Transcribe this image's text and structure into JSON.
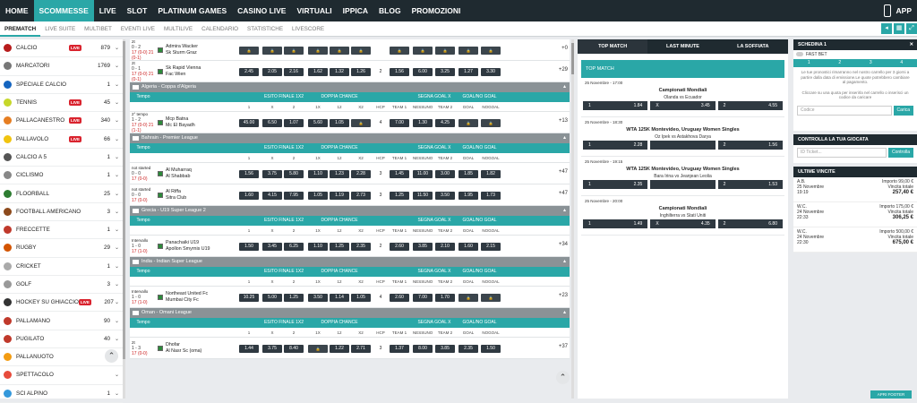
{
  "topnav": {
    "items": [
      "HOME",
      "SCOMMESSE",
      "LIVE",
      "SLOT",
      "PLATINUM GAMES",
      "CASINO LIVE",
      "VIRTUALI",
      "IPPICA",
      "BLOG",
      "PROMOZIONI"
    ],
    "app": "APP"
  },
  "subnav": [
    "PREMATCH",
    "LIVE SUITE",
    "MULTIBET",
    "EVENTI LIVE",
    "MULTILIVE",
    "CALENDARIO",
    "STATISTICHE",
    "LIVESCORE"
  ],
  "sports": [
    {
      "name": "CALCIO",
      "live": "LIVE",
      "count": "879",
      "color": "#b71c1c"
    },
    {
      "name": "MARCATORI",
      "live": "",
      "count": "1769",
      "color": "#777"
    },
    {
      "name": "SPECIALE CALCIO",
      "live": "",
      "count": "1",
      "color": "#1565c0"
    },
    {
      "name": "TENNIS",
      "live": "LIVE",
      "count": "45",
      "color": "#c6d72a"
    },
    {
      "name": "PALLACANESTRO",
      "live": "LIVE",
      "count": "340",
      "color": "#e67e22"
    },
    {
      "name": "PALLAVOLO",
      "live": "LIVE",
      "count": "66",
      "color": "#f1c40f"
    },
    {
      "name": "CALCIO A 5",
      "live": "",
      "count": "1",
      "color": "#555"
    },
    {
      "name": "CICLISMO",
      "live": "",
      "count": "1",
      "color": "#888"
    },
    {
      "name": "FLOORBALL",
      "live": "",
      "count": "25",
      "color": "#2e7d32"
    },
    {
      "name": "FOOTBALL AMERICANO",
      "live": "",
      "count": "3",
      "color": "#8d4a1c"
    },
    {
      "name": "FRECCETTE",
      "live": "",
      "count": "1",
      "color": "#c0392b"
    },
    {
      "name": "RUGBY",
      "live": "",
      "count": "29",
      "color": "#d35400"
    },
    {
      "name": "CRICKET",
      "live": "",
      "count": "1",
      "color": "#aaa"
    },
    {
      "name": "GOLF",
      "live": "",
      "count": "3",
      "color": "#999"
    },
    {
      "name": "HOCKEY SU GHIACCIO",
      "live": "LIVE",
      "count": "207",
      "color": "#333"
    },
    {
      "name": "PALLAMANO",
      "live": "",
      "count": "90",
      "color": "#c0392b"
    },
    {
      "name": "PUGILATO",
      "live": "",
      "count": "40",
      "color": "#c0392b"
    },
    {
      "name": "PALLANUOTO",
      "live": "",
      "count": "4",
      "color": "#f39c12"
    },
    {
      "name": "SPETTACOLO",
      "live": "",
      "count": "",
      "color": "#e74c3c"
    },
    {
      "name": "SCI ALPINO",
      "live": "",
      "count": "1",
      "color": "#3498db"
    }
  ],
  "markets": {
    "h1": "ESITO FINALE 1X2",
    "h2": "DOPPIA CHANCE",
    "h3": "SEGNA GOAL X",
    "h4": "GOAL/NO GOAL",
    "tempo": "Tempo",
    "sub": [
      "1",
      "X",
      "2",
      "1X",
      "12",
      "X2",
      "HCP",
      "TEAM 1",
      "NESSUNO",
      "TEAM 2",
      "GOAL",
      "NOGOAL"
    ]
  },
  "blocks": [
    {
      "type": "match",
      "status": "2t",
      "score": "0 - 2",
      "extra": "17 (0-0) 21 (0-1)",
      "t1": "Admira Wacker",
      "t2": "Sk Sturm Graz",
      "odds": [
        "",
        "",
        "",
        "",
        "",
        "",
        "",
        "",
        "",
        "",
        "",
        ""
      ],
      "plus": "+0"
    },
    {
      "type": "match",
      "status": "2t",
      "score": "0 - 1",
      "extra": "17 (0-0) 21 (0-1)",
      "t1": "Sk Rapid Vienna",
      "t2": "Fac Wien",
      "odds": [
        "2.45",
        "2.05",
        "2.16",
        "1.62",
        "1.32",
        "1.26",
        "2",
        "1.56",
        "6.00",
        "3.25",
        "1.27",
        "3.30"
      ],
      "plus": "+29"
    },
    {
      "type": "league",
      "name": "Algeria - Coppa d'Algeria"
    },
    {
      "type": "head"
    },
    {
      "type": "match",
      "status": "2° tempo",
      "score": "1 - 2",
      "extra": "17 (0-0) 21 (1-1)",
      "t1": "Mcp Batna",
      "t2": "Mc El Bayadh",
      "odds": [
        "45.00",
        "6.50",
        "1.07",
        "5.60",
        "1.05",
        "",
        "4",
        "7.00",
        "1.30",
        "4.25",
        "",
        ""
      ],
      "plus": "+13"
    },
    {
      "type": "league",
      "name": "Bahrain - Premier League"
    },
    {
      "type": "head"
    },
    {
      "type": "match",
      "status": "not started",
      "score": "0 - 0",
      "extra": "17 (0-0)",
      "t1": "Al Muharraq",
      "t2": "Al Shabbab",
      "odds": [
        "1.56",
        "3.75",
        "5.80",
        "1.10",
        "1.23",
        "2.28",
        "3",
        "1.45",
        "11.00",
        "3.00",
        "1.85",
        "1.82"
      ],
      "plus": "+47"
    },
    {
      "type": "match",
      "status": "not started",
      "score": "0 - 0",
      "extra": "17 (0-0)",
      "t1": "Al Riffa",
      "t2": "Sitra Club",
      "odds": [
        "1.60",
        "4.15",
        "7.95",
        "1.05",
        "1.19",
        "2.73",
        "3",
        "1.25",
        "11.50",
        "3.50",
        "1.95",
        "1.73"
      ],
      "plus": "+47"
    },
    {
      "type": "league",
      "name": "Grecia - U19 Super League 2"
    },
    {
      "type": "head"
    },
    {
      "type": "match",
      "status": "Intervallo",
      "score": "1 - 0",
      "extra": "17 (1-0)",
      "t1": "Panachaiki U19",
      "t2": "Apollon Smyrnis U19",
      "odds": [
        "1.50",
        "3.45",
        "6.25",
        "1.10",
        "1.25",
        "2.35",
        "2",
        "2.60",
        "3.85",
        "2.10",
        "1.60",
        "2.15"
      ],
      "plus": "+34"
    },
    {
      "type": "league",
      "name": "India - Indian Super League"
    },
    {
      "type": "head"
    },
    {
      "type": "match",
      "status": "Intervallo",
      "score": "1 - 0",
      "extra": "17 (1-0)",
      "t1": "Northeast United Fc",
      "t2": "Mumbai City Fc",
      "odds": [
        "10.25",
        "5.00",
        "1.25",
        "3.50",
        "1.14",
        "1.05",
        "4",
        "2.60",
        "7.00",
        "1.70",
        "",
        ""
      ],
      "plus": "+23"
    },
    {
      "type": "league",
      "name": "Oman - Omani League"
    },
    {
      "type": "head"
    },
    {
      "type": "match",
      "status": "2t",
      "score": "1 - 3",
      "extra": "17 (0-0)",
      "t1": "Dhofar",
      "t2": "Al Nasr Sc (oma)",
      "odds": [
        "1.44",
        "3.75",
        "8.40",
        "",
        "1.22",
        "2.71",
        "3",
        "1.37",
        "8.00",
        "3.85",
        "2.35",
        "1.50"
      ],
      "plus": "+37"
    }
  ],
  "center": {
    "tabs": [
      "TOP MATCH",
      "LAST MINUTE",
      "LA SOFFIATA"
    ],
    "title": "TOP MATCH",
    "events": [
      {
        "date": "25 Novembre - 17:00",
        "comp": "Campionati Mondiali",
        "teams": "Olanda vs Ecuador",
        "o1": "1.84",
        "ox": "3.45",
        "o2": "4.55"
      },
      {
        "date": "25 Novembre - 18:30",
        "comp": "WTA 125K Montevideo, Uruguay Women Singles",
        "teams": "Oz Ipek vs Astakhova Darya",
        "o1": "2.28",
        "ox": "",
        "o2": "1.56"
      },
      {
        "date": "25 Novembre - 19:15",
        "comp": "WTA 125K Montevideo, Uruguay Women Singles",
        "teams": "Bara Irina vs Jeanjean Leolia",
        "o1": "2.35",
        "ox": "",
        "o2": "1.53"
      },
      {
        "date": "25 Novembre - 20:00",
        "comp": "Campionati Mondiali",
        "teams": "Inghilterra vs Stati Uniti",
        "o1": "1.49",
        "ox": "4.35",
        "o2": "6.80"
      }
    ]
  },
  "slip": {
    "title": "SCHEDINA 1",
    "fast": "FAST BET",
    "steps": [
      "1",
      "2",
      "3",
      "4"
    ],
    "text1": "Le tue pronostici rimarranno nel nostro carrello per 3 giorni a partire dalla data di emissione.Le quote potrebbero cambiare al pagamento.",
    "text2": "Cliccare su una quota per inserirla nel carrello o inserisci un codice da caricare",
    "code": "Codice",
    "load": "Carica"
  },
  "check": {
    "title": "CONTROLLA LA TUA GIOCATA",
    "placeholder": "ID Ticket...",
    "btn": "Controlla"
  },
  "wins": {
    "title": "ULTIME VINCITE",
    "items": [
      {
        "name": "A.B.",
        "date": "25 Novembre",
        "time": "19:19",
        "imp": "Importo 99,00 €",
        "lbl": "Vincita totale",
        "amt": "257,40 €"
      },
      {
        "name": "W.C.",
        "date": "24 Novembre",
        "time": "22:33",
        "imp": "Importo 175,00 €",
        "lbl": "Vincita totale",
        "amt": "306,25 €"
      },
      {
        "name": "W.C.",
        "date": "24 Novembre",
        "time": "22:30",
        "imp": "Importo 500,00 €",
        "lbl": "Vincita totale",
        "amt": "675,00 €"
      }
    ]
  },
  "footer": "APRI FOOTER"
}
